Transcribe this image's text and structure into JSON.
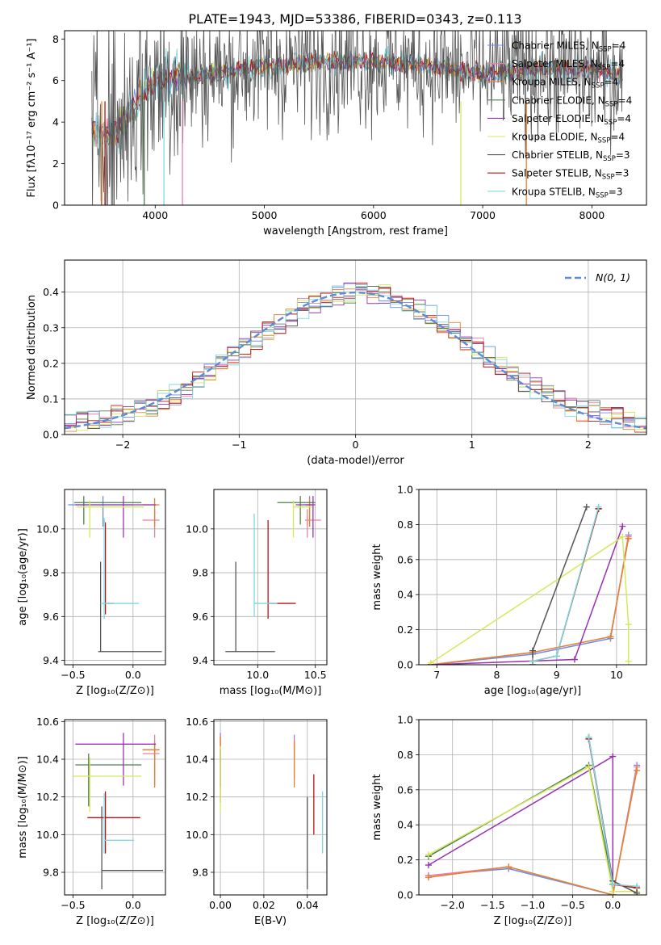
{
  "title": "PLATE=1943, MJD=53386, FIBERID=0343, z=0.113",
  "chart_data": [
    {
      "id": "spectrum",
      "type": "line",
      "xlabel": "wavelength [Angstrom, rest frame]",
      "ylabel": "Flux [fλ10⁻¹⁷ erg cm⁻² s⁻¹ A⁻¹]",
      "xlim": [
        3170,
        8500
      ],
      "ylim": [
        0,
        8.4
      ],
      "xticks": [
        4000,
        5000,
        6000,
        7000,
        8000
      ],
      "yticks": [
        0,
        2,
        4,
        6,
        8
      ],
      "grid": false,
      "legend_position": "top-right",
      "legend": [
        {
          "name": "Chabrier MILES, N_SSP=4",
          "color": "#6a8ee8"
        },
        {
          "name": "Salpeter MILES, N_SSP=4",
          "color": "#f07f9e"
        },
        {
          "name": "Kroupa MILES, N_SSP=4",
          "color": "#e8812c"
        },
        {
          "name": "Chabrier ELODIE, N_SSP=4",
          "color": "#4f7f4f"
        },
        {
          "name": "Salpeter ELODIE, N_SSP=4",
          "color": "#9932b0"
        },
        {
          "name": "Kroupa ELODIE, N_SSP=4",
          "color": "#d7e85a"
        },
        {
          "name": "Chabrier STELIB, N_SSP=3",
          "color": "#555555"
        },
        {
          "name": "Salpeter STELIB, N_SSP=3",
          "color": "#b81414"
        },
        {
          "name": "Kroupa STELIB, N_SSP=3",
          "color": "#7fd8e0"
        }
      ],
      "continuum": {
        "x": [
          3420,
          3600,
          3700,
          3800,
          3900,
          4000,
          4200,
          4500,
          5000,
          5500,
          6000,
          6500,
          7000,
          7500,
          8000,
          8280
        ],
        "y": [
          3.7,
          3.4,
          3.9,
          4.8,
          5.5,
          6.0,
          6.1,
          6.3,
          6.7,
          6.9,
          6.9,
          6.7,
          6.3,
          6.6,
          6.5,
          6.3
        ]
      }
    },
    {
      "id": "residuals",
      "type": "line",
      "xlabel": "(data-model)/error",
      "ylabel": "Normed distribution",
      "xlim": [
        -2.5,
        2.5
      ],
      "ylim": [
        0,
        0.49
      ],
      "xticks": [
        -2,
        -1,
        0,
        1,
        2
      ],
      "yticks": [
        0.0,
        0.1,
        0.2,
        0.3,
        0.4
      ],
      "grid": true,
      "legend_position": "top-right",
      "legend": [
        {
          "name": "N(0, 1)",
          "color": "#5b8bd9"
        }
      ]
    },
    {
      "id": "age-vs-Z",
      "type": "scatter",
      "xlabel": "Z [log₁₀(Z/Z⊙)]",
      "ylabel": "age [log₁₀(age/yr)]",
      "xlim": [
        -0.57,
        0.27
      ],
      "ylim": [
        9.38,
        10.18
      ],
      "xticks": [
        -0.5,
        0.0
      ],
      "yticks": [
        9.4,
        9.6,
        9.8,
        10.0
      ],
      "grid": true,
      "points": [
        {
          "x": -0.25,
          "y": 10.11,
          "xerr": [
            0.29,
            0.25
          ],
          "yerr": [
            0.1,
            0.04
          ],
          "color": "#6a8ee8"
        },
        {
          "x": 0.18,
          "y": 10.04,
          "xerr": [
            0.1,
            0.04
          ],
          "yerr": [
            0.08,
            0.05
          ],
          "color": "#f07f9e"
        },
        {
          "x": 0.18,
          "y": 10.11,
          "xerr": [
            0.1,
            0.04
          ],
          "yerr": [
            0.1,
            0.03
          ],
          "color": "#e8812c"
        },
        {
          "x": -0.41,
          "y": 10.12,
          "xerr": [
            0.08,
            0.48
          ],
          "yerr": [
            0.1,
            0.03
          ],
          "color": "#4f7f4f"
        },
        {
          "x": -0.08,
          "y": 10.11,
          "xerr": [
            0.4,
            0.27
          ],
          "yerr": [
            0.15,
            0.04
          ],
          "color": "#9932b0"
        },
        {
          "x": -0.36,
          "y": 10.1,
          "xerr": [
            0.11,
            0.45
          ],
          "yerr": [
            0.14,
            0.03
          ],
          "color": "#d7e85a"
        },
        {
          "x": -0.27,
          "y": 9.44,
          "xerr": [
            0.02,
            0.51
          ],
          "yerr": [
            0.0,
            0.41
          ],
          "color": "#555555"
        },
        {
          "x": -0.23,
          "y": 9.66,
          "xerr": [
            0.0,
            0.07
          ],
          "yerr": [
            0.05,
            0.37
          ],
          "color": "#b81414"
        },
        {
          "x": -0.24,
          "y": 9.66,
          "xerr": [
            0.03,
            0.29
          ],
          "yerr": [
            0.07,
            0.39
          ],
          "color": "#7fd8e0"
        }
      ]
    },
    {
      "id": "age-vs-mass",
      "type": "scatter",
      "xlabel": "mass [log₁₀(M/M⊙)]",
      "ylabel": "",
      "xlim": [
        9.62,
        10.6
      ],
      "ylim": [
        9.38,
        10.18
      ],
      "xticks": [
        10.0,
        10.5
      ],
      "yticks": [
        9.4,
        9.6,
        9.8,
        10.0
      ],
      "grid": true,
      "points": [
        {
          "x": 10.45,
          "y": 10.11,
          "xerr": [
            0.04,
            0.02
          ],
          "yerr": [
            0.1,
            0.04
          ],
          "color": "#6a8ee8"
        },
        {
          "x": 10.43,
          "y": 10.04,
          "xerr": [
            0.02,
            0.12
          ],
          "yerr": [
            0.08,
            0.05
          ],
          "color": "#f07f9e"
        },
        {
          "x": 10.45,
          "y": 10.11,
          "xerr": [
            0.02,
            0.02
          ],
          "yerr": [
            0.1,
            0.03
          ],
          "color": "#e8812c"
        },
        {
          "x": 10.37,
          "y": 10.12,
          "xerr": [
            0.2,
            0.13
          ],
          "yerr": [
            0.1,
            0.03
          ],
          "color": "#4f7f4f"
        },
        {
          "x": 10.48,
          "y": 10.11,
          "xerr": [
            0.15,
            0.02
          ],
          "yerr": [
            0.15,
            0.04
          ],
          "color": "#9932b0"
        },
        {
          "x": 10.31,
          "y": 10.1,
          "xerr": [
            0.0,
            0.16
          ],
          "yerr": [
            0.14,
            0.03
          ],
          "color": "#d7e85a"
        },
        {
          "x": 9.81,
          "y": 9.44,
          "xerr": [
            0.09,
            0.34
          ],
          "yerr": [
            0.0,
            0.41
          ],
          "color": "#555555"
        },
        {
          "x": 10.09,
          "y": 9.66,
          "xerr": [
            0.0,
            0.24
          ],
          "yerr": [
            0.07,
            0.38
          ],
          "color": "#b81414"
        },
        {
          "x": 9.97,
          "y": 9.66,
          "xerr": [
            0.0,
            0.2
          ],
          "yerr": [
            0.06,
            0.41
          ],
          "color": "#7fd8e0"
        }
      ]
    },
    {
      "id": "weight-vs-age",
      "type": "line",
      "xlabel": "age [log₁₀(age/yr)]",
      "ylabel": "mass weight",
      "xlim": [
        6.7,
        10.5
      ],
      "ylim": [
        0,
        1.0
      ],
      "xticks": [
        7,
        8,
        9,
        10
      ],
      "yticks": [
        0.0,
        0.2,
        0.4,
        0.6,
        0.8,
        1.0
      ],
      "grid": true,
      "series": [
        {
          "color": "#6a8ee8",
          "x": [
            6.9,
            8.6,
            9.9,
            10.2
          ],
          "y": [
            0.0,
            0.06,
            0.15,
            0.74
          ]
        },
        {
          "color": "#f07f9e",
          "x": [
            6.9,
            8.6,
            9.9,
            10.2
          ],
          "y": [
            0.0,
            0.07,
            0.16,
            0.73
          ]
        },
        {
          "color": "#e8812c",
          "x": [
            6.9,
            8.6,
            9.9,
            10.2
          ],
          "y": [
            0.0,
            0.07,
            0.16,
            0.72
          ]
        },
        {
          "color": "#4f7f4f",
          "x": [
            8.6,
            9.0,
            9.7
          ],
          "y": [
            0.02,
            0.05,
            0.89
          ]
        },
        {
          "color": "#9932b0",
          "x": [
            6.9,
            9.3,
            10.1
          ],
          "y": [
            0.0,
            0.03,
            0.79
          ]
        },
        {
          "color": "#d7e85a",
          "x": [
            6.9,
            10.1,
            10.2,
            10.2
          ],
          "y": [
            0.01,
            0.73,
            0.23,
            0.02
          ]
        },
        {
          "color": "#555555",
          "x": [
            8.6,
            8.6,
            9.5
          ],
          "y": [
            0.0,
            0.08,
            0.9
          ]
        },
        {
          "color": "#b81414",
          "x": [
            8.6,
            9.0,
            9.7
          ],
          "y": [
            0.02,
            0.05,
            0.89
          ]
        },
        {
          "color": "#7fd8e0",
          "x": [
            8.6,
            9.0,
            9.7
          ],
          "y": [
            0.02,
            0.05,
            0.9
          ]
        }
      ]
    },
    {
      "id": "mass-vs-Z",
      "type": "scatter",
      "xlabel": "Z [log₁₀(Z/Z⊙)]",
      "ylabel": "mass [log₁₀(M/M⊙)]",
      "xlim": [
        -0.57,
        0.27
      ],
      "ylim": [
        9.68,
        10.61
      ],
      "xticks": [
        -0.5,
        0.0
      ],
      "yticks": [
        9.8,
        10.0,
        10.2,
        10.4,
        10.6
      ],
      "grid": true,
      "points": [
        {
          "x": 0.18,
          "y": 10.45,
          "xerr": [
            0.1,
            0.04
          ],
          "yerr": [
            0.05,
            0.03
          ],
          "color": "#6a8ee8"
        },
        {
          "x": 0.18,
          "y": 10.43,
          "xerr": [
            0.1,
            0.04
          ],
          "yerr": [
            0.17,
            0.1
          ],
          "color": "#f07f9e"
        },
        {
          "x": 0.18,
          "y": 10.45,
          "xerr": [
            0.1,
            0.04
          ],
          "yerr": [
            0.2,
            0.04
          ],
          "color": "#e8812c"
        },
        {
          "x": -0.37,
          "y": 10.37,
          "xerr": [
            0.11,
            0.44
          ],
          "yerr": [
            0.22,
            0.06
          ],
          "color": "#4f7f4f"
        },
        {
          "x": -0.08,
          "y": 10.48,
          "xerr": [
            0.4,
            0.27
          ],
          "yerr": [
            0.22,
            0.06
          ],
          "color": "#9932b0"
        },
        {
          "x": -0.36,
          "y": 10.31,
          "xerr": [
            0.14,
            0.43
          ],
          "yerr": [
            0.19,
            0.1
          ],
          "color": "#d7e85a"
        },
        {
          "x": -0.26,
          "y": 9.81,
          "xerr": [
            0.0,
            0.51
          ],
          "yerr": [
            0.1,
            0.34
          ],
          "color": "#555555"
        },
        {
          "x": -0.23,
          "y": 10.09,
          "xerr": [
            0.15,
            0.29
          ],
          "yerr": [
            0.19,
            0.14
          ],
          "color": "#b81414"
        },
        {
          "x": -0.24,
          "y": 9.97,
          "xerr": [
            0.0,
            0.25
          ],
          "yerr": [
            0.07,
            0.25
          ],
          "color": "#7fd8e0"
        }
      ]
    },
    {
      "id": "mass-vs-EBV",
      "type": "scatter",
      "xlabel": "E(B-V)",
      "ylabel": "",
      "xlim": [
        -0.003,
        0.049
      ],
      "ylim": [
        9.68,
        10.61
      ],
      "xticks": [
        0.0,
        0.02,
        0.04
      ],
      "yticks": [
        9.8,
        10.0,
        10.2,
        10.4,
        10.6
      ],
      "grid": true,
      "points": [
        {
          "x": 0.0,
          "y": 10.45,
          "xerr": [
            0,
            0
          ],
          "yerr": [
            0.07,
            0.09
          ],
          "color": "#6a8ee8"
        },
        {
          "x": 0.0,
          "y": 10.43,
          "xerr": [
            0,
            0
          ],
          "yerr": [
            0.17,
            0.1
          ],
          "color": "#f07f9e"
        },
        {
          "x": 0.0,
          "y": 10.45,
          "xerr": [
            0,
            0
          ],
          "yerr": [
            0.2,
            0.07
          ],
          "color": "#e8812c"
        },
        {
          "x": 0.0,
          "y": 10.37,
          "xerr": [
            0,
            0
          ],
          "yerr": [
            0.2,
            0.08
          ],
          "color": "#9932b0"
        },
        {
          "x": 0.0,
          "y": 10.31,
          "xerr": [
            0,
            0
          ],
          "yerr": [
            0.19,
            0.16
          ],
          "color": "#d7e85a"
        },
        {
          "x": 0.034,
          "y": 10.45,
          "xerr": [
            0,
            0
          ],
          "yerr": [
            0.05,
            0.08
          ],
          "color": "#6a8ee8"
        },
        {
          "x": 0.034,
          "y": 10.43,
          "xerr": [
            0,
            0
          ],
          "yerr": [
            0.13,
            0.08
          ],
          "color": "#f07f9e"
        },
        {
          "x": 0.034,
          "y": 10.4,
          "xerr": [
            0,
            0
          ],
          "yerr": [
            0.15,
            0.1
          ],
          "color": "#e8812c"
        },
        {
          "x": 0.04,
          "y": 10.0,
          "xerr": [
            0,
            0
          ],
          "yerr": [
            0.29,
            0.2
          ],
          "color": "#555555"
        },
        {
          "x": 0.043,
          "y": 10.12,
          "xerr": [
            0,
            0
          ],
          "yerr": [
            0.12,
            0.2
          ],
          "color": "#b81414"
        },
        {
          "x": 0.047,
          "y": 10.05,
          "xerr": [
            0,
            0
          ],
          "yerr": [
            0.15,
            0.18
          ],
          "color": "#7fd8e0"
        }
      ]
    },
    {
      "id": "weight-vs-Z",
      "type": "line",
      "xlabel": "Z [log₁₀(Z/Z⊙)]",
      "ylabel": "mass weight",
      "xlim": [
        -2.42,
        0.42
      ],
      "ylim": [
        0,
        1.0
      ],
      "xticks": [
        -2.0,
        -1.5,
        -1.0,
        -0.5,
        0.0
      ],
      "yticks": [
        0.0,
        0.2,
        0.4,
        0.6,
        0.8,
        1.0
      ],
      "grid": true,
      "series": [
        {
          "color": "#6a8ee8",
          "x": [
            -2.3,
            -1.3,
            0.0,
            0.3
          ],
          "y": [
            0.11,
            0.15,
            0.0,
            0.74
          ]
        },
        {
          "color": "#f07f9e",
          "x": [
            -2.3,
            -1.3,
            0.0,
            0.3
          ],
          "y": [
            0.11,
            0.16,
            0.0,
            0.73
          ]
        },
        {
          "color": "#e8812c",
          "x": [
            -2.3,
            -1.3,
            0.0,
            0.3
          ],
          "y": [
            0.1,
            0.16,
            0.0,
            0.71
          ]
        },
        {
          "color": "#4f7f4f",
          "x": [
            -2.3,
            -0.3,
            0.0,
            0.3
          ],
          "y": [
            0.22,
            0.74,
            0.06,
            0.04
          ]
        },
        {
          "color": "#9932b0",
          "x": [
            -2.3,
            0.0,
            0.0
          ],
          "y": [
            0.17,
            0.79,
            0.02
          ]
        },
        {
          "color": "#d7e85a",
          "x": [
            -2.3,
            -0.3,
            0.0,
            0.3
          ],
          "y": [
            0.23,
            0.73,
            0.02,
            0.02
          ]
        },
        {
          "color": "#555555",
          "x": [
            -0.3,
            0.0,
            0.3
          ],
          "y": [
            0.9,
            0.08,
            0.01
          ]
        },
        {
          "color": "#b81414",
          "x": [
            -0.3,
            0.0,
            0.3
          ],
          "y": [
            0.89,
            0.06,
            0.04
          ]
        },
        {
          "color": "#7fd8e0",
          "x": [
            -0.3,
            0.0,
            0.3
          ],
          "y": [
            0.9,
            0.06,
            0.05
          ]
        }
      ]
    }
  ]
}
